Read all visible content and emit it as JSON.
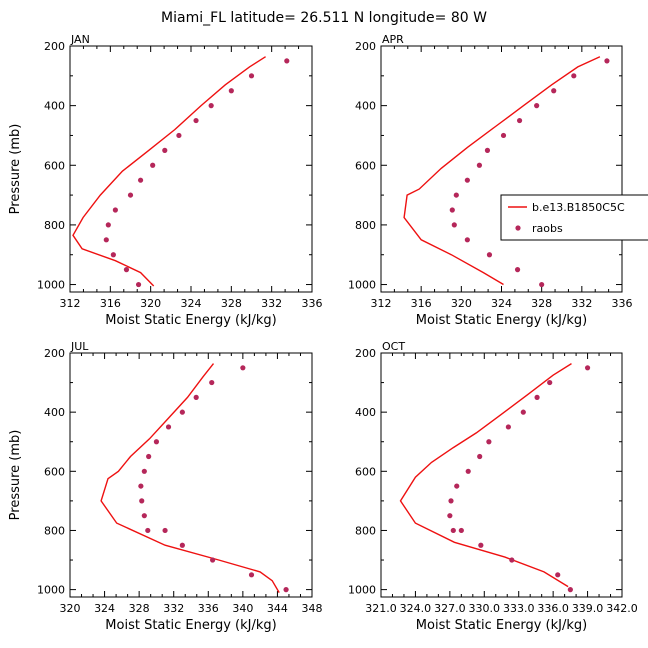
{
  "title": "Miami_FL  latitude= 26.511 N longitude= 80 W",
  "colors": {
    "model": "#ee1111",
    "obs": "#b5275a",
    "axis": "#000000"
  },
  "legend": {
    "model_label": "b.e13.B1850C5C",
    "obs_label": "raobs"
  },
  "chart_data": [
    {
      "type": "line",
      "panel_title": "JAN",
      "xlabel": "Moist Static Energy (kJ/kg)",
      "ylabel": "Pressure (mb)",
      "xlim": [
        312,
        336
      ],
      "ylim": [
        200,
        1025
      ],
      "xticks": [
        312,
        316,
        320,
        324,
        328,
        332,
        336
      ],
      "xtick_labels": [
        "312",
        "316",
        "320",
        "324",
        "328",
        "332",
        "336"
      ],
      "yticks": [
        200,
        400,
        600,
        800,
        1000
      ],
      "model": {
        "name": "b.e13.B1850C5C",
        "x": [
          331.4,
          329.8,
          327.4,
          325.0,
          322.4,
          319.8,
          317.2,
          315.0,
          313.3,
          312.3,
          313.2,
          316.5,
          319.0,
          320.3
        ],
        "y": [
          236,
          270,
          330,
          400,
          480,
          550,
          620,
          700,
          775,
          835,
          880,
          920,
          960,
          1005
        ]
      },
      "obs": {
        "name": "raobs",
        "x": [
          333.5,
          330.0,
          328.0,
          326.0,
          324.5,
          322.8,
          321.4,
          320.2,
          319.0,
          318.0,
          316.5,
          315.8,
          315.6,
          316.3,
          317.6,
          318.8
        ],
        "y": [
          250,
          300,
          350,
          400,
          450,
          500,
          550,
          600,
          650,
          700,
          750,
          800,
          850,
          900,
          950,
          1000
        ]
      }
    },
    {
      "type": "line",
      "panel_title": "APR",
      "xlabel": "Moist Static Energy (kJ/kg)",
      "ylabel": "",
      "xlim": [
        312,
        336
      ],
      "ylim": [
        200,
        1025
      ],
      "xticks": [
        312,
        316,
        320,
        324,
        328,
        332,
        336
      ],
      "xtick_labels": [
        "312",
        "316",
        "320",
        "324",
        "328",
        "332",
        "336"
      ],
      "yticks": [
        200,
        400,
        600,
        800,
        1000
      ],
      "model": {
        "name": "b.e13.B1850C5C",
        "x": [
          333.8,
          331.6,
          329.0,
          326.2,
          323.4,
          320.6,
          318.0,
          315.8,
          314.6,
          314.3,
          316.0,
          319.0,
          322.2,
          324.2
        ],
        "y": [
          236,
          270,
          330,
          400,
          470,
          540,
          610,
          680,
          700,
          775,
          850,
          900,
          960,
          1000
        ]
      },
      "obs": {
        "name": "raobs",
        "x": [
          334.5,
          331.2,
          329.2,
          327.5,
          325.8,
          324.2,
          322.6,
          321.8,
          320.6,
          319.5,
          319.1,
          319.3,
          320.6,
          322.8,
          325.6,
          328.0
        ],
        "y": [
          250,
          300,
          350,
          400,
          450,
          500,
          550,
          600,
          650,
          700,
          750,
          800,
          850,
          900,
          950,
          1000
        ]
      }
    },
    {
      "type": "line",
      "panel_title": "JUL",
      "xlabel": "Moist Static Energy (kJ/kg)",
      "ylabel": "Pressure (mb)",
      "xlim": [
        320,
        348
      ],
      "ylim": [
        200,
        1025
      ],
      "xticks": [
        320,
        324,
        328,
        332,
        336,
        340,
        344,
        348
      ],
      "xtick_labels": [
        "320",
        "324",
        "328",
        "332",
        "336",
        "340",
        "344",
        "348"
      ],
      "yticks": [
        200,
        400,
        600,
        800,
        1000
      ],
      "model": {
        "name": "b.e13.B1850C5C",
        "x": [
          336.6,
          335.4,
          333.6,
          331.4,
          329.2,
          327.0,
          325.6,
          324.4,
          323.6,
          325.4,
          331.0,
          337.2,
          342.0,
          343.4,
          344.2
        ],
        "y": [
          236,
          280,
          350,
          420,
          490,
          550,
          600,
          625,
          700,
          775,
          850,
          900,
          940,
          970,
          1010
        ]
      },
      "obs": {
        "name": "raobs",
        "x": [
          340.0,
          336.4,
          334.6,
          333.0,
          331.4,
          330.0,
          329.1,
          328.6,
          328.2,
          328.3,
          328.6,
          329.0,
          331.0,
          333.0,
          336.5,
          341.0,
          345.0
        ],
        "y": [
          250,
          300,
          350,
          400,
          450,
          500,
          550,
          600,
          650,
          700,
          750,
          800,
          800,
          850,
          900,
          950,
          1000
        ]
      }
    },
    {
      "type": "line",
      "panel_title": "OCT",
      "xlabel": "Moist Static Energy (kJ/kg)",
      "ylabel": "",
      "xlim": [
        321.0,
        342.0
      ],
      "ylim": [
        200,
        1025
      ],
      "xticks": [
        321.0,
        324.0,
        327.0,
        330.0,
        333.0,
        336.0,
        339.0,
        342.0
      ],
      "xtick_labels": [
        "321.0",
        "324.0",
        "327.0",
        "330.0",
        "333.0",
        "336.0",
        "339.0",
        "342.0"
      ],
      "yticks": [
        200,
        400,
        600,
        800,
        1000
      ],
      "model": {
        "name": "b.e13.B1850C5C",
        "x": [
          337.6,
          336.0,
          333.8,
          331.4,
          329.3,
          327.3,
          325.4,
          324.0,
          322.7,
          324.0,
          327.4,
          331.8,
          335.2,
          337.3
        ],
        "y": [
          236,
          275,
          340,
          410,
          470,
          520,
          570,
          620,
          700,
          775,
          840,
          890,
          940,
          990
        ]
      },
      "obs": {
        "name": "raobs",
        "x": [
          339.0,
          335.7,
          334.6,
          333.4,
          332.1,
          330.4,
          329.6,
          328.6,
          327.6,
          327.1,
          327.0,
          327.3,
          328.0,
          329.7,
          332.4,
          336.4,
          337.5
        ],
        "y": [
          250,
          300,
          350,
          400,
          450,
          500,
          550,
          600,
          650,
          700,
          750,
          800,
          800,
          850,
          900,
          950,
          1000
        ]
      }
    }
  ]
}
